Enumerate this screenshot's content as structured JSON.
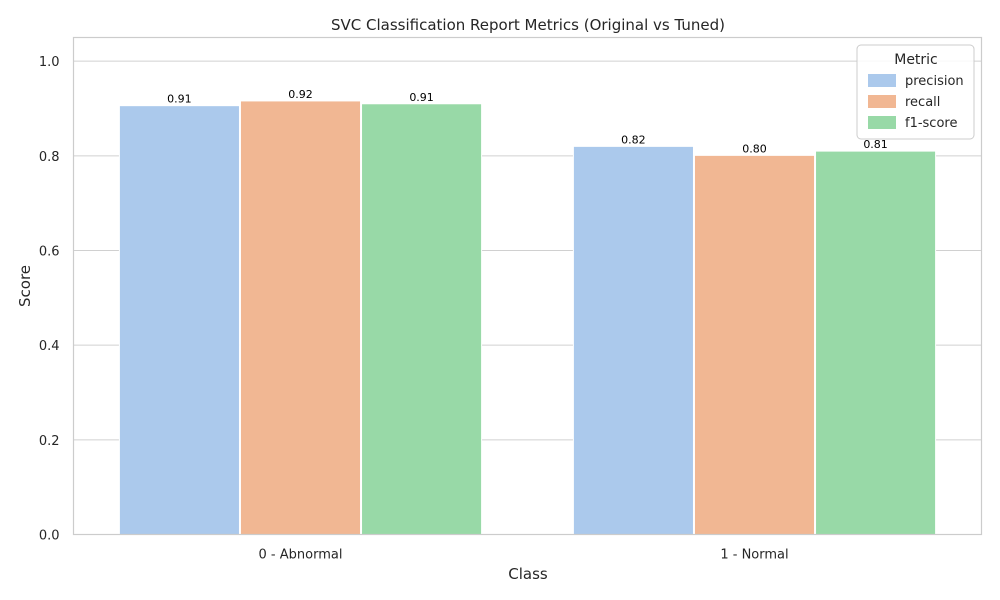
{
  "chart_data": {
    "type": "bar",
    "title": "SVC Classification Report Metrics (Original vs Tuned)",
    "xlabel": "Class",
    "ylabel": "Score",
    "ylim": [
      0,
      1.05
    ],
    "yticks": [
      "0.0",
      "0.2",
      "0.4",
      "0.6",
      "0.8",
      "1.0"
    ],
    "ytick_values": [
      0,
      0.2,
      0.4,
      0.6,
      0.8,
      1.0
    ],
    "grid": true,
    "legend": {
      "title": "Metric",
      "placement": "top-right"
    },
    "categories": [
      "0 - Abnormal",
      "1 - Normal"
    ],
    "series": [
      {
        "name": "precision",
        "color": "#abc9ec",
        "values": [
          0.906,
          0.82
        ],
        "labels": [
          "0.91",
          "0.82"
        ]
      },
      {
        "name": "recall",
        "color": "#f1b793",
        "values": [
          0.916,
          0.801
        ],
        "labels": [
          "0.92",
          "0.80"
        ]
      },
      {
        "name": "f1-score",
        "color": "#98d9a7",
        "values": [
          0.91,
          0.81
        ],
        "labels": [
          "0.91",
          "0.81"
        ]
      }
    ]
  }
}
